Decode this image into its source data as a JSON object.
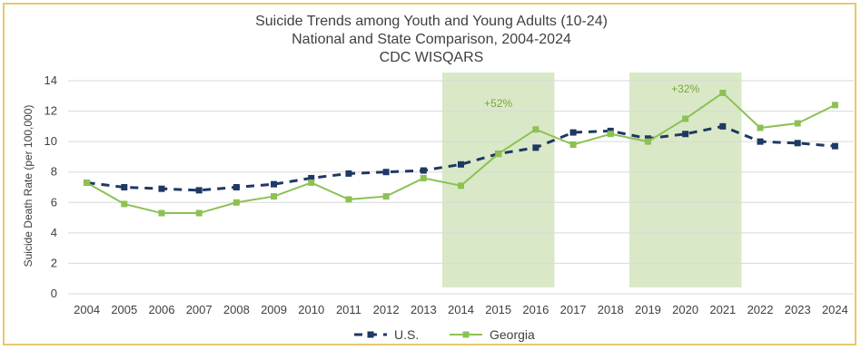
{
  "chart_data": {
    "type": "line",
    "title": [
      "Suicide Trends among Youth and Young Adults (10-24)",
      "National and State Comparison, 2004-2024",
      "CDC WISQARS"
    ],
    "xlabel": "",
    "ylabel": "Suicide Death Rate (per 100,000)",
    "ylim": [
      0,
      14
    ],
    "yticks": [
      0,
      2,
      4,
      6,
      8,
      10,
      12,
      14
    ],
    "grid": "horizontal",
    "legend_position": "bottom",
    "x": [
      "2004",
      "2005",
      "2006",
      "2007",
      "2008",
      "2009",
      "2010",
      "2011",
      "2012",
      "2013",
      "2014",
      "2015",
      "2016",
      "2017",
      "2018",
      "2019",
      "2020",
      "2021",
      "2022",
      "2023",
      "2024"
    ],
    "series": [
      {
        "name": "U.S.",
        "color": "#1f3864",
        "style": "dashed",
        "marker": "square",
        "values": [
          7.3,
          7.0,
          6.9,
          6.8,
          7.0,
          7.2,
          7.6,
          7.9,
          8.0,
          8.1,
          8.5,
          9.2,
          9.6,
          10.6,
          10.7,
          10.2,
          10.5,
          11.0,
          10.0,
          9.9,
          9.7
        ]
      },
      {
        "name": "Georgia",
        "color": "#8dc153",
        "style": "solid",
        "marker": "square",
        "values": [
          7.3,
          5.9,
          5.3,
          5.3,
          6.0,
          6.4,
          7.3,
          6.2,
          6.4,
          7.6,
          7.1,
          9.2,
          10.8,
          9.8,
          10.5,
          10.0,
          11.5,
          13.2,
          10.9,
          11.2,
          12.4
        ]
      }
    ],
    "highlights": [
      {
        "from": "2014",
        "to": "2016",
        "label": "+52%",
        "color": "#d9e9c7"
      },
      {
        "from": "2019",
        "to": "2021",
        "label": "+32%",
        "color": "#d9e9c7"
      }
    ]
  }
}
